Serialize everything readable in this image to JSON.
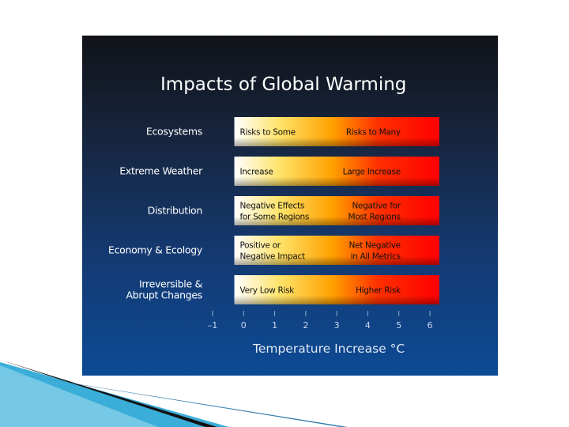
{
  "chart_data": {
    "type": "bar",
    "title": "Impacts of Global Warming",
    "xlabel": "Temperature Increase °C",
    "x_ticks": [
      "–1",
      "0",
      "1",
      "2",
      "3",
      "4",
      "5",
      "6"
    ],
    "xlim": [
      -1,
      6
    ],
    "gradient_colors": [
      "#ffffff",
      "#ffe36a",
      "#ffa000",
      "#ff3000",
      "#ff0000"
    ],
    "rows": [
      {
        "category": "Ecosystems",
        "start": -0.3,
        "end": 6.3,
        "left_text": [
          "Risks to Some"
        ],
        "right_text": [
          "Risks to Many"
        ]
      },
      {
        "category": "Extreme Weather",
        "start": -0.3,
        "end": 6.3,
        "left_text": [
          "Increase"
        ],
        "right_text": [
          "Large Increase"
        ]
      },
      {
        "category": "Distribution",
        "start": -0.3,
        "end": 6.3,
        "left_text": [
          "Negative Effects",
          "for Some Regions"
        ],
        "right_text": [
          "Negative for",
          "Most Regions"
        ]
      },
      {
        "category": "Economy & Ecology",
        "start": -0.3,
        "end": 6.3,
        "left_text": [
          "Positive or",
          "Negative Impact"
        ],
        "right_text": [
          "Net Negative",
          "in All Metrics"
        ]
      },
      {
        "category": [
          "Irreversible &",
          "Abrupt  Changes"
        ],
        "start": -0.3,
        "end": 6.3,
        "left_text": [
          "Very Low Risk"
        ],
        "right_text": [
          "Higher Risk"
        ]
      }
    ]
  }
}
